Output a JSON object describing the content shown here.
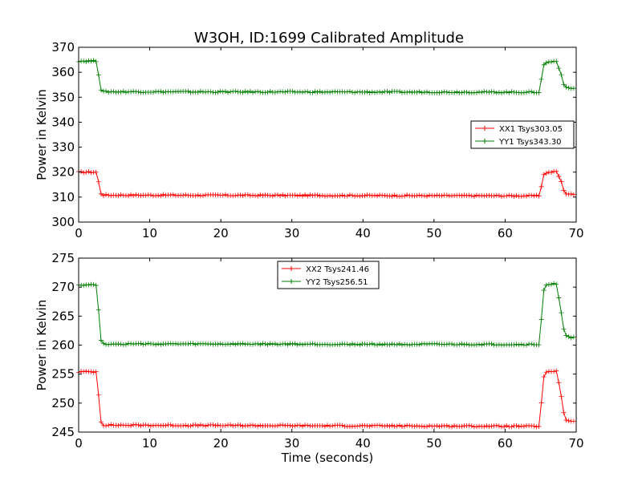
{
  "title": "W3OH, ID:1699 Calibrated Amplitude",
  "colors": {
    "red": "#ff0000",
    "green": "#007f00",
    "axis": "#000000",
    "background": "#ffffff"
  },
  "chart_data": [
    {
      "type": "line",
      "title": "W3OH, ID:1699 Calibrated Amplitude",
      "xlabel": "",
      "ylabel": "Power in Kelvin",
      "xlim": [
        0,
        70
      ],
      "ylim": [
        300,
        370
      ],
      "xticks": [
        0,
        10,
        20,
        30,
        40,
        50,
        60,
        70
      ],
      "yticks": [
        300,
        310,
        320,
        330,
        340,
        350,
        360,
        370
      ],
      "grid": false,
      "legend_position": "right",
      "series": [
        {
          "name": "XX1 Tsys303.05",
          "color": "#ff0000",
          "marker": "+",
          "profile": {
            "t": [
              0,
              2.5,
              3.2,
              64.8,
              65.5,
              67.2,
              67.8,
              68.4,
              69.5
            ],
            "v": [
              320,
              320,
              310.8,
              310.5,
              319.6,
              320.3,
              317,
              311.5,
              311
            ]
          },
          "x": [
            0,
            0.35,
            0.7,
            1.05,
            1.4,
            1.75,
            2.1,
            2.45,
            2.8,
            3.15,
            3.5,
            3.85,
            4.2,
            4.55,
            4.9,
            5.25,
            5.6,
            5.95,
            6.3,
            6.65,
            7,
            7.35,
            7.7,
            8.05,
            8.4,
            8.75,
            9.1,
            9.45,
            9.8,
            10.15,
            10.5,
            10.85,
            11.2,
            11.55,
            11.9,
            12.25,
            12.6,
            12.95,
            13.3,
            13.65,
            14,
            14.35,
            14.7,
            15.05,
            15.4,
            15.75,
            16.1,
            16.45,
            16.8,
            17.15,
            17.5,
            17.85,
            18.2,
            18.55,
            18.9,
            19.25,
            19.6,
            19.95,
            20.3,
            20.65,
            21,
            21.35,
            21.7,
            22.05,
            22.4,
            22.75,
            23.1,
            23.45,
            23.8,
            24.15,
            24.5,
            24.85,
            25.2,
            25.55,
            25.9,
            26.25,
            26.6,
            26.95,
            27.3,
            27.65,
            28,
            28.35,
            28.7,
            29.05,
            29.4,
            29.75,
            30.1,
            30.45,
            30.8,
            31.15,
            31.5,
            31.85,
            32.2,
            32.55,
            32.9,
            33.25,
            33.6,
            33.95,
            34.3,
            34.65,
            35,
            35.35,
            35.7,
            36.05,
            36.4,
            36.75,
            37.1,
            37.45,
            37.8,
            38.15,
            38.5,
            38.85,
            39.2,
            39.55,
            39.9,
            40.25,
            40.6,
            40.95,
            41.3,
            41.65,
            42,
            42.35,
            42.7,
            43.05,
            43.4,
            43.75,
            44.1,
            44.45,
            44.8,
            45.15,
            45.5,
            45.85,
            46.2,
            46.55,
            46.9,
            47.25,
            47.6,
            47.95,
            48.3,
            48.65,
            49,
            49.35,
            49.7,
            50.05,
            50.4,
            50.75,
            51.1,
            51.45,
            51.8,
            52.15,
            52.5,
            52.85,
            53.2,
            53.55,
            53.9,
            54.25,
            54.6,
            54.95,
            55.3,
            55.65,
            56,
            56.35,
            56.7,
            57.05,
            57.4,
            57.75,
            58.1,
            58.45,
            58.8,
            59.15,
            59.5,
            59.85,
            60.2,
            60.55,
            60.9,
            61.25,
            61.6,
            61.95,
            62.3,
            62.65,
            63,
            63.35,
            63.7,
            64.05,
            64.4,
            64.75,
            65.1,
            65.45,
            65.8,
            66.15,
            66.5,
            66.85,
            67.2,
            67.55,
            67.9,
            68.25,
            68.6,
            68.95,
            69.3,
            69.65
          ]
        },
        {
          "name": "YY1 Tsys343.30",
          "color": "#007f00",
          "marker": "+",
          "profile": {
            "t": [
              0,
              2.5,
              3.2,
              64.8,
              65.5,
              67.2,
              67.8,
              68.4,
              69.5
            ],
            "v": [
              364.5,
              364.5,
              352.2,
              352,
              363.8,
              364.5,
              360,
              353.8,
              353.5
            ]
          },
          "x": [
            0,
            0.35,
            0.7,
            1.05,
            1.4,
            1.75,
            2.1,
            2.45,
            2.8,
            3.15,
            3.5,
            3.85,
            4.2,
            4.55,
            4.9,
            5.25,
            5.6,
            5.95,
            6.3,
            6.65,
            7,
            7.35,
            7.7,
            8.05,
            8.4,
            8.75,
            9.1,
            9.45,
            9.8,
            10.15,
            10.5,
            10.85,
            11.2,
            11.55,
            11.9,
            12.25,
            12.6,
            12.95,
            13.3,
            13.65,
            14,
            14.35,
            14.7,
            15.05,
            15.4,
            15.75,
            16.1,
            16.45,
            16.8,
            17.15,
            17.5,
            17.85,
            18.2,
            18.55,
            18.9,
            19.25,
            19.6,
            19.95,
            20.3,
            20.65,
            21,
            21.35,
            21.7,
            22.05,
            22.4,
            22.75,
            23.1,
            23.45,
            23.8,
            24.15,
            24.5,
            24.85,
            25.2,
            25.55,
            25.9,
            26.25,
            26.6,
            26.95,
            27.3,
            27.65,
            28,
            28.35,
            28.7,
            29.05,
            29.4,
            29.75,
            30.1,
            30.45,
            30.8,
            31.15,
            31.5,
            31.85,
            32.2,
            32.55,
            32.9,
            33.25,
            33.6,
            33.95,
            34.3,
            34.65,
            35,
            35.35,
            35.7,
            36.05,
            36.4,
            36.75,
            37.1,
            37.45,
            37.8,
            38.15,
            38.5,
            38.85,
            39.2,
            39.55,
            39.9,
            40.25,
            40.6,
            40.95,
            41.3,
            41.65,
            42,
            42.35,
            42.7,
            43.05,
            43.4,
            43.75,
            44.1,
            44.45,
            44.8,
            45.15,
            45.5,
            45.85,
            46.2,
            46.55,
            46.9,
            47.25,
            47.6,
            47.95,
            48.3,
            48.65,
            49,
            49.35,
            49.7,
            50.05,
            50.4,
            50.75,
            51.1,
            51.45,
            51.8,
            52.15,
            52.5,
            52.85,
            53.2,
            53.55,
            53.9,
            54.25,
            54.6,
            54.95,
            55.3,
            55.65,
            56,
            56.35,
            56.7,
            57.05,
            57.4,
            57.75,
            58.1,
            58.45,
            58.8,
            59.15,
            59.5,
            59.85,
            60.2,
            60.55,
            60.9,
            61.25,
            61.6,
            61.95,
            62.3,
            62.65,
            63,
            63.35,
            63.7,
            64.05,
            64.4,
            64.75,
            65.1,
            65.45,
            65.8,
            66.15,
            66.5,
            66.85,
            67.2,
            67.55,
            67.9,
            68.25,
            68.6,
            68.95,
            69.3,
            69.65
          ]
        }
      ]
    },
    {
      "type": "line",
      "title": "",
      "xlabel": "Time (seconds)",
      "ylabel": "Power in Kelvin",
      "xlim": [
        0,
        70
      ],
      "ylim": [
        245,
        275
      ],
      "xticks": [
        0,
        10,
        20,
        30,
        40,
        50,
        60,
        70
      ],
      "yticks": [
        245,
        250,
        255,
        260,
        265,
        270,
        275
      ],
      "grid": false,
      "legend_position": "upper-center",
      "series": [
        {
          "name": "XX2 Tsys241.46",
          "color": "#ff0000",
          "marker": "+",
          "profile": {
            "t": [
              0,
              2.5,
              3.2,
              64.8,
              65.5,
              67.2,
              67.8,
              68.4,
              69.5
            ],
            "v": [
              255.4,
              255.4,
              246.2,
              246,
              255.2,
              255.6,
              252,
              247.2,
              246.8
            ]
          },
          "x": [
            0,
            0.35,
            0.7,
            1.05,
            1.4,
            1.75,
            2.1,
            2.45,
            2.8,
            3.15,
            3.5,
            3.85,
            4.2,
            4.55,
            4.9,
            5.25,
            5.6,
            5.95,
            6.3,
            6.65,
            7,
            7.35,
            7.7,
            8.05,
            8.4,
            8.75,
            9.1,
            9.45,
            9.8,
            10.15,
            10.5,
            10.85,
            11.2,
            11.55,
            11.9,
            12.25,
            12.6,
            12.95,
            13.3,
            13.65,
            14,
            14.35,
            14.7,
            15.05,
            15.4,
            15.75,
            16.1,
            16.45,
            16.8,
            17.15,
            17.5,
            17.85,
            18.2,
            18.55,
            18.9,
            19.25,
            19.6,
            19.95,
            20.3,
            20.65,
            21,
            21.35,
            21.7,
            22.05,
            22.4,
            22.75,
            23.1,
            23.45,
            23.8,
            24.15,
            24.5,
            24.85,
            25.2,
            25.55,
            25.9,
            26.25,
            26.6,
            26.95,
            27.3,
            27.65,
            28,
            28.35,
            28.7,
            29.05,
            29.4,
            29.75,
            30.1,
            30.45,
            30.8,
            31.15,
            31.5,
            31.85,
            32.2,
            32.55,
            32.9,
            33.25,
            33.6,
            33.95,
            34.3,
            34.65,
            35,
            35.35,
            35.7,
            36.05,
            36.4,
            36.75,
            37.1,
            37.45,
            37.8,
            38.15,
            38.5,
            38.85,
            39.2,
            39.55,
            39.9,
            40.25,
            40.6,
            40.95,
            41.3,
            41.65,
            42,
            42.35,
            42.7,
            43.05,
            43.4,
            43.75,
            44.1,
            44.45,
            44.8,
            45.15,
            45.5,
            45.85,
            46.2,
            46.55,
            46.9,
            47.25,
            47.6,
            47.95,
            48.3,
            48.65,
            49,
            49.35,
            49.7,
            50.05,
            50.4,
            50.75,
            51.1,
            51.45,
            51.8,
            52.15,
            52.5,
            52.85,
            53.2,
            53.55,
            53.9,
            54.25,
            54.6,
            54.95,
            55.3,
            55.65,
            56,
            56.35,
            56.7,
            57.05,
            57.4,
            57.75,
            58.1,
            58.45,
            58.8,
            59.15,
            59.5,
            59.85,
            60.2,
            60.55,
            60.9,
            61.25,
            61.6,
            61.95,
            62.3,
            62.65,
            63,
            63.35,
            63.7,
            64.05,
            64.4,
            64.75,
            65.1,
            65.45,
            65.8,
            66.15,
            66.5,
            66.85,
            67.2,
            67.55,
            67.9,
            68.25,
            68.6,
            68.95,
            69.3,
            69.65
          ]
        },
        {
          "name": "YY2 Tsys256.51",
          "color": "#007f00",
          "marker": "+",
          "profile": {
            "t": [
              0,
              2.5,
              3.2,
              64.8,
              65.5,
              67.2,
              67.8,
              68.4,
              69.5
            ],
            "v": [
              270.4,
              270.4,
              260.2,
              260.1,
              270.2,
              270.6,
              266.5,
              261.6,
              261.3
            ]
          },
          "x": [
            0,
            0.35,
            0.7,
            1.05,
            1.4,
            1.75,
            2.1,
            2.45,
            2.8,
            3.15,
            3.5,
            3.85,
            4.2,
            4.55,
            4.9,
            5.25,
            5.6,
            5.95,
            6.3,
            6.65,
            7,
            7.35,
            7.7,
            8.05,
            8.4,
            8.75,
            9.1,
            9.45,
            9.8,
            10.15,
            10.5,
            10.85,
            11.2,
            11.55,
            11.9,
            12.25,
            12.6,
            12.95,
            13.3,
            13.65,
            14,
            14.35,
            14.7,
            15.05,
            15.4,
            15.75,
            16.1,
            16.45,
            16.8,
            17.15,
            17.5,
            17.85,
            18.2,
            18.55,
            18.9,
            19.25,
            19.6,
            19.95,
            20.3,
            20.65,
            21,
            21.35,
            21.7,
            22.05,
            22.4,
            22.75,
            23.1,
            23.45,
            23.8,
            24.15,
            24.5,
            24.85,
            25.2,
            25.55,
            25.9,
            26.25,
            26.6,
            26.95,
            27.3,
            27.65,
            28,
            28.35,
            28.7,
            29.05,
            29.4,
            29.75,
            30.1,
            30.45,
            30.8,
            31.15,
            31.5,
            31.85,
            32.2,
            32.55,
            32.9,
            33.25,
            33.6,
            33.95,
            34.3,
            34.65,
            35,
            35.35,
            35.7,
            36.05,
            36.4,
            36.75,
            37.1,
            37.45,
            37.8,
            38.15,
            38.5,
            38.85,
            39.2,
            39.55,
            39.9,
            40.25,
            40.6,
            40.95,
            41.3,
            41.65,
            42,
            42.35,
            42.7,
            43.05,
            43.4,
            43.75,
            44.1,
            44.45,
            44.8,
            45.15,
            45.5,
            45.85,
            46.2,
            46.55,
            46.9,
            47.25,
            47.6,
            47.95,
            48.3,
            48.65,
            49,
            49.35,
            49.7,
            50.05,
            50.4,
            50.75,
            51.1,
            51.45,
            51.8,
            52.15,
            52.5,
            52.85,
            53.2,
            53.55,
            53.9,
            54.25,
            54.6,
            54.95,
            55.3,
            55.65,
            56,
            56.35,
            56.7,
            57.05,
            57.4,
            57.75,
            58.1,
            58.45,
            58.8,
            59.15,
            59.5,
            59.85,
            60.2,
            60.55,
            60.9,
            61.25,
            61.6,
            61.95,
            62.3,
            62.65,
            63,
            63.35,
            63.7,
            64.05,
            64.4,
            64.75,
            65.1,
            65.45,
            65.8,
            66.15,
            66.5,
            66.85,
            67.2,
            67.55,
            67.9,
            68.25,
            68.6,
            68.95,
            69.3,
            69.65
          ]
        }
      ]
    }
  ]
}
